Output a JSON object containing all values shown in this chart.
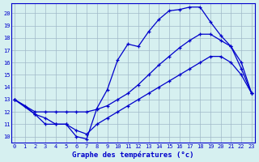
{
  "title": "Graphe des températures (°c)",
  "bg_color": "#d6f0f0",
  "grid_color": "#a0b8c8",
  "line_color": "#0000cc",
  "x_ticks": [
    0,
    1,
    2,
    3,
    4,
    5,
    6,
    7,
    8,
    9,
    10,
    11,
    12,
    13,
    14,
    15,
    16,
    17,
    18,
    19,
    20,
    21,
    22,
    23
  ],
  "y_ticks": [
    10,
    11,
    12,
    13,
    14,
    15,
    16,
    17,
    18,
    19,
    20
  ],
  "ylim": [
    9.5,
    20.8
  ],
  "xlim": [
    -0.3,
    23.3
  ],
  "curve1_x": [
    0,
    1,
    2,
    3,
    4,
    5,
    6,
    7,
    8,
    9,
    10,
    11,
    12,
    13,
    14,
    15,
    16,
    17,
    18,
    19,
    20,
    21,
    22,
    23
  ],
  "curve1_y": [
    13.0,
    12.5,
    11.8,
    11.0,
    11.0,
    11.0,
    10.0,
    9.8,
    12.3,
    13.8,
    16.2,
    17.5,
    17.3,
    18.5,
    19.5,
    20.2,
    20.3,
    20.5,
    20.5,
    19.3,
    18.2,
    17.3,
    15.5,
    13.5
  ],
  "curve2_x": [
    0,
    2,
    3,
    4,
    5,
    6,
    7,
    8,
    9,
    10,
    11,
    12,
    13,
    14,
    15,
    16,
    17,
    18,
    19,
    20,
    21,
    22,
    23
  ],
  "curve2_y": [
    13.0,
    12.0,
    12.0,
    12.0,
    12.0,
    12.0,
    12.0,
    12.2,
    12.5,
    13.0,
    13.5,
    14.2,
    15.0,
    15.8,
    16.5,
    17.2,
    17.8,
    18.3,
    18.3,
    17.8,
    17.3,
    16.0,
    13.5
  ],
  "curve3_x": [
    0,
    2,
    3,
    4,
    5,
    6,
    7,
    8,
    9,
    10,
    11,
    12,
    13,
    14,
    15,
    16,
    17,
    18,
    19,
    20,
    21,
    22,
    23
  ],
  "curve3_y": [
    13.0,
    11.8,
    11.5,
    11.0,
    11.0,
    10.5,
    10.2,
    11.0,
    11.5,
    12.0,
    12.5,
    13.0,
    13.5,
    14.0,
    14.5,
    15.0,
    15.5,
    16.0,
    16.5,
    16.5,
    16.0,
    15.0,
    13.5
  ]
}
